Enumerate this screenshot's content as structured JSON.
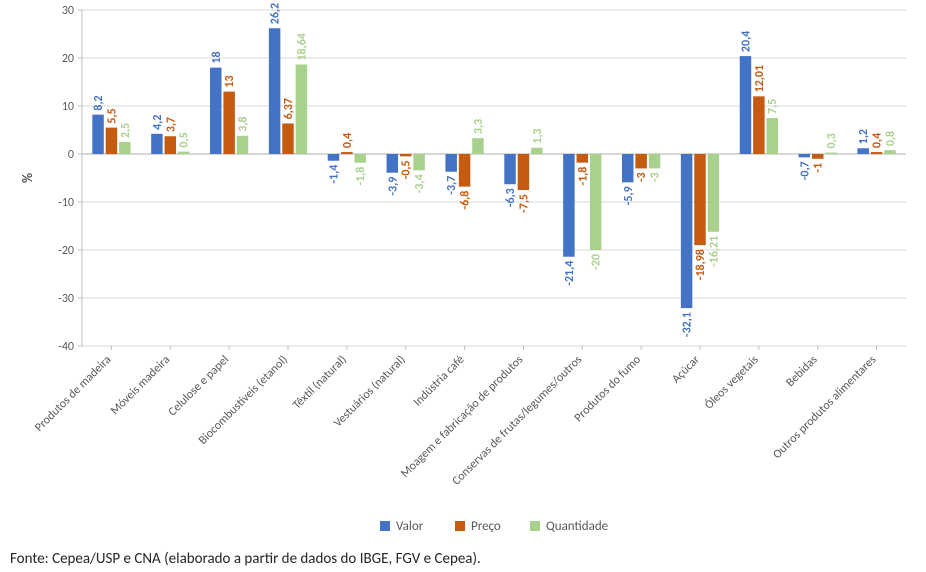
{
  "chart": {
    "type": "bar",
    "ylabel": "%",
    "ylim": [
      -40,
      30
    ],
    "ytick_step": 10,
    "background_color": "#ffffff",
    "grid_color": "#d9d9d9",
    "axis_line_color": "#bfbfbf",
    "axis_text_color": "#595959",
    "bar_group_gap": 0.35,
    "bar_gap": 0.05,
    "label_rotation": -45,
    "label_fontsize": 12,
    "data_label_fontsize": 12,
    "data_label_rotation": -90,
    "series": [
      {
        "key": "valor",
        "label": "Valor",
        "color": "#4472c4"
      },
      {
        "key": "preco",
        "label": "Preço",
        "color": "#c55a11"
      },
      {
        "key": "quantidade",
        "label": "Quantidade",
        "color": "#a9d18e"
      }
    ],
    "categories": [
      "Produtos de madeira",
      "Móveis madeira",
      "Celulose e papel",
      "Biocombustíveis (etanol)",
      "Têxtil (natural)",
      "Vestuários (natural)",
      "Indústria café",
      "Moagem e fabricação de produtos",
      "Conservas de frutas/legumes/outros",
      "Produtos do fumo",
      "Açúcar",
      "Óleos vegetais",
      "Bebidas",
      "Outros produtos alimentares"
    ],
    "data": {
      "valor": [
        8.2,
        4.2,
        18.0,
        26.2,
        -1.4,
        -3.9,
        -3.7,
        -6.3,
        -21.4,
        -5.9,
        -32.1,
        20.4,
        -0.7,
        1.2
      ],
      "preco": [
        5.5,
        3.7,
        13.0,
        6.37,
        0.4,
        -0.5,
        -6.8,
        -7.5,
        -1.8,
        -3.0,
        -18.98,
        12.01,
        -1.0,
        0.4
      ],
      "quantidade": [
        2.5,
        0.5,
        3.8,
        18.64,
        -1.8,
        -3.4,
        3.3,
        1.3,
        -20.0,
        -3.0,
        -16.21,
        7.5,
        0.3,
        0.8
      ]
    },
    "legend": {
      "position": "bottom"
    }
  },
  "source_text": "Fonte: Cepea/USP e CNA (elaborado a partir de dados do IBGE, FGV e Cepea)."
}
